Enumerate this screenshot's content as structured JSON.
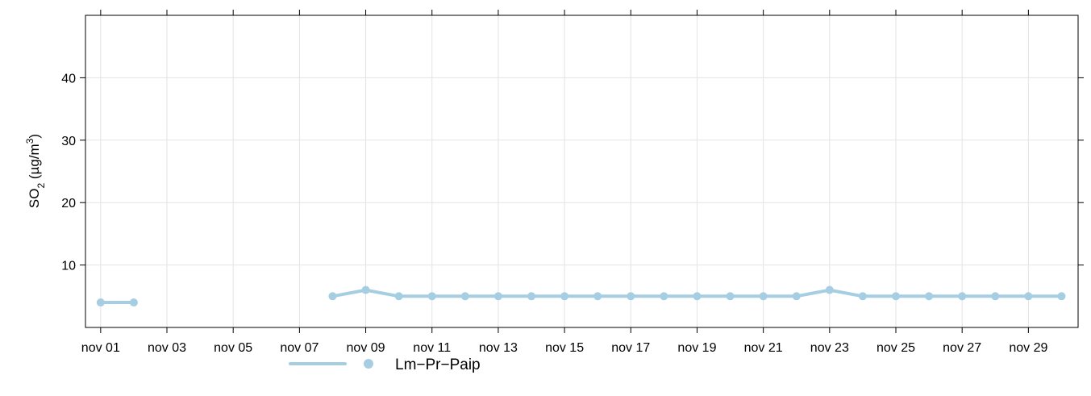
{
  "chart_data": {
    "type": "line",
    "ylabel": "SO₂ (µg/m³)",
    "ylabel_parts": {
      "main": "SO",
      "sub": "2",
      "unit_open": " (µg/m",
      "sup": "3",
      "unit_close": ")"
    },
    "ylim": [
      0,
      50
    ],
    "y_ticks": [
      10,
      20,
      30,
      40
    ],
    "x_range": [
      "2023-10-31T13:00",
      "2023-11-30T12:00"
    ],
    "x_ticks": [
      "2023-11-01",
      "2023-11-03",
      "2023-11-05",
      "2023-11-07",
      "2023-11-09",
      "2023-11-11",
      "2023-11-13",
      "2023-11-15",
      "2023-11-17",
      "2023-11-19",
      "2023-11-21",
      "2023-11-23",
      "2023-11-25",
      "2023-11-27",
      "2023-11-29"
    ],
    "x_tick_labels": [
      "nov 01",
      "nov 03",
      "nov 05",
      "nov 07",
      "nov 09",
      "nov 11",
      "nov 13",
      "nov 15",
      "nov 17",
      "nov 19",
      "nov 21",
      "nov 23",
      "nov 25",
      "nov 27",
      "nov 29"
    ],
    "grid": true,
    "legend_position": "bottom",
    "series": [
      {
        "name": "Lm−Pr−Paip",
        "color": "#a6cee3",
        "x": [
          "2023-11-01",
          "2023-11-02",
          "2023-11-03",
          "2023-11-04",
          "2023-11-05",
          "2023-11-06",
          "2023-11-07",
          "2023-11-08",
          "2023-11-09",
          "2023-11-10",
          "2023-11-11",
          "2023-11-12",
          "2023-11-13",
          "2023-11-14",
          "2023-11-15",
          "2023-11-16",
          "2023-11-17",
          "2023-11-18",
          "2023-11-19",
          "2023-11-20",
          "2023-11-21",
          "2023-11-22",
          "2023-11-23",
          "2023-11-24",
          "2023-11-25",
          "2023-11-26",
          "2023-11-27",
          "2023-11-28",
          "2023-11-29",
          "2023-11-30"
        ],
        "y": [
          4,
          4,
          null,
          null,
          null,
          null,
          null,
          5,
          6,
          5,
          5,
          5,
          5,
          5,
          5,
          5,
          5,
          5,
          5,
          5,
          5,
          5,
          6,
          5,
          5,
          5,
          5,
          5,
          5,
          5
        ]
      }
    ]
  }
}
